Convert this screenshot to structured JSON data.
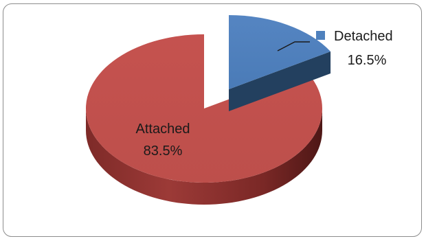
{
  "chart_data": {
    "type": "pie",
    "style": "3d-exploded",
    "slices": [
      {
        "label": "Attached",
        "value": 83.5,
        "display": "83.5%",
        "color": "#c0504d",
        "side_color": "#8b2f2d"
      },
      {
        "label": "Detached",
        "value": 16.5,
        "display": "16.5%",
        "color": "#4f81bd",
        "side_color": "#2c4a73"
      }
    ],
    "legend": {
      "position": "top-right",
      "entries": [
        "Detached"
      ]
    }
  }
}
